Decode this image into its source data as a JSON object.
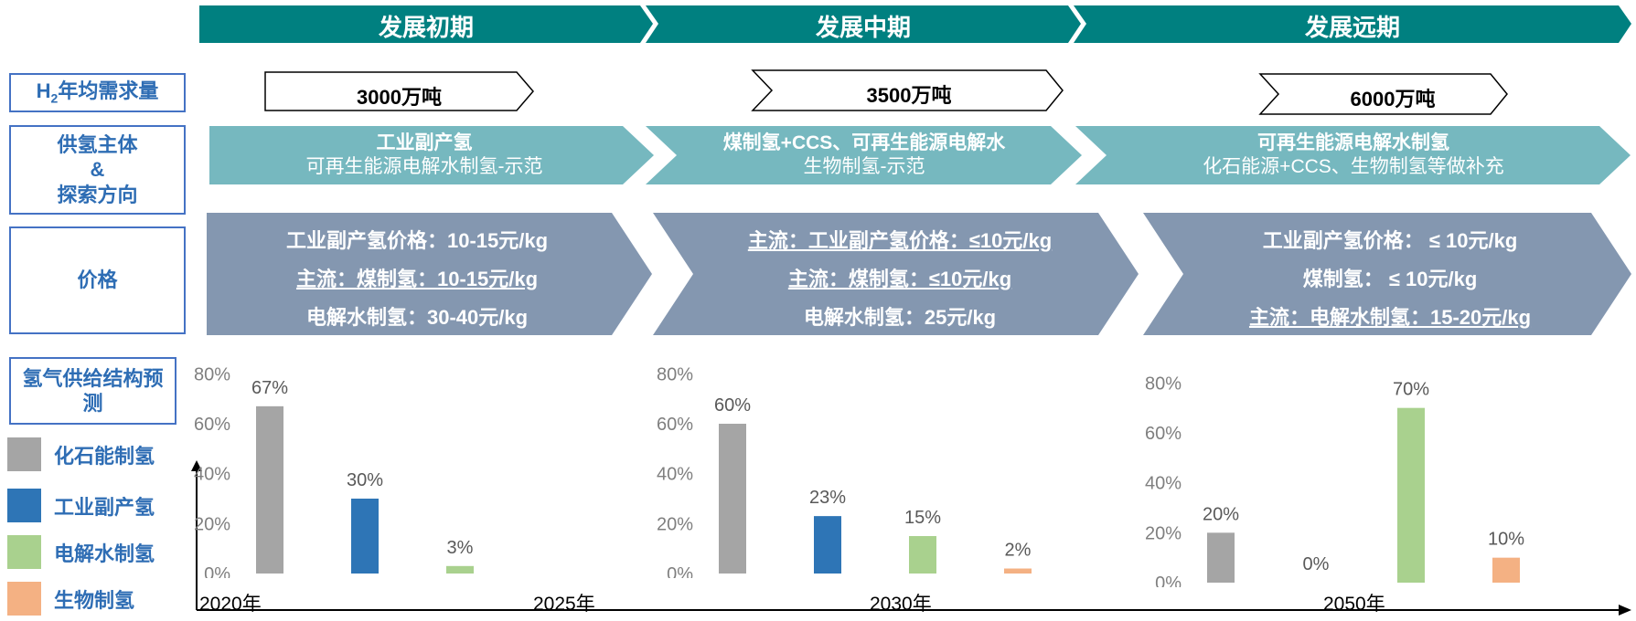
{
  "phases": [
    "发展初期",
    "发展中期",
    "发展远期"
  ],
  "row_labels": {
    "h2_demand_prefix": "H",
    "h2_demand_sub": "2",
    "h2_demand_suffix": "年均需求量",
    "supply_line1": "供氢主体",
    "supply_line2": "&",
    "supply_line3": "探索方向",
    "price": "价格",
    "structure": "氢气供给结构预测"
  },
  "demand": [
    "3000万吨",
    "3500万吨",
    "6000万吨"
  ],
  "supply": [
    {
      "main": "工业副产氢",
      "sub": "可再生能源电解水制氢-示范"
    },
    {
      "main": "煤制氢+CCS、可再生能源电解水",
      "sub": "生物制氢-示范"
    },
    {
      "main": "可再生能源电解水制氢",
      "sub": "化石能源+CCS、生物制氢等做补充"
    }
  ],
  "prices": [
    [
      "工业副产氢价格：10-15元/kg",
      "主流：煤制氢：10-15元/kg",
      "电解水制氢：30-40元/kg"
    ],
    [
      "主流：工业副产氢价格：≤10元/kg",
      "主流：煤制氢：≤10元/kg",
      "电解水制氢：25元/kg"
    ],
    [
      "工业副产氢价格： ≤ 10元/kg",
      "煤制氢： ≤ 10元/kg",
      "主流：电解水制氢：15-20元/kg"
    ]
  ],
  "legend": [
    {
      "label": "化石能制氢",
      "color": "#A5A5A5"
    },
    {
      "label": "工业副产氢",
      "color": "#2E75B6"
    },
    {
      "label": "电解水制氢",
      "color": "#A9D18E"
    },
    {
      "label": "生物制氢",
      "color": "#F4B183"
    }
  ],
  "colors": {
    "phase": "#008080",
    "supply": "#76B8BF",
    "price": "#8497B0",
    "label_border": "#4472C4",
    "label_text": "#2E6DB4"
  },
  "timeline": [
    "2020年",
    "2025年",
    "2030年",
    "2050年"
  ],
  "chart_data": [
    {
      "type": "bar",
      "categories": [
        "化石能制氢",
        "工业副产氢",
        "电解水制氢",
        "生物制氢"
      ],
      "values": [
        67,
        30,
        3,
        null
      ],
      "labels": [
        "67%",
        "30%",
        "3%",
        ""
      ],
      "yticks": [
        "0%",
        "20%",
        "40%",
        "60%",
        "80%"
      ],
      "ylim": [
        0,
        80
      ]
    },
    {
      "type": "bar",
      "categories": [
        "化石能制氢",
        "工业副产氢",
        "电解水制氢",
        "生物制氢"
      ],
      "values": [
        60,
        23,
        15,
        2
      ],
      "labels": [
        "60%",
        "23%",
        "15%",
        "2%"
      ],
      "yticks": [
        "0%",
        "20%",
        "40%",
        "60%",
        "80%"
      ],
      "ylim": [
        0,
        80
      ]
    },
    {
      "type": "bar",
      "categories": [
        "化石能制氢",
        "工业副产氢",
        "电解水制氢",
        "生物制氢"
      ],
      "values": [
        20,
        0,
        70,
        10
      ],
      "labels": [
        "20%",
        "0%",
        "70%",
        "10%"
      ],
      "yticks": [
        "0%",
        "20%",
        "40%",
        "60%",
        "80%"
      ],
      "ylim": [
        0,
        80
      ]
    }
  ]
}
